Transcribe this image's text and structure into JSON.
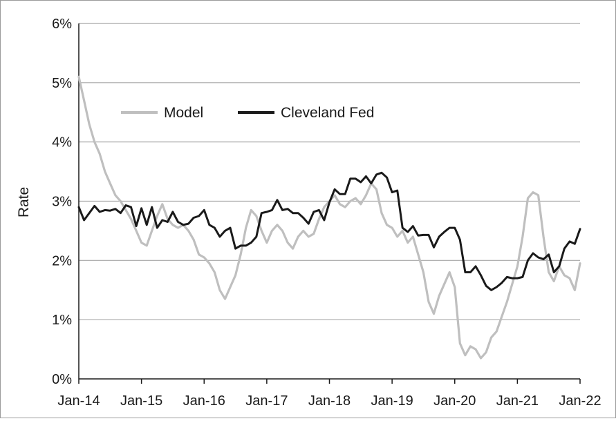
{
  "chart_data": {
    "type": "line",
    "title": "",
    "xlabel": "",
    "ylabel": "Rate",
    "ylim": [
      0,
      6
    ],
    "y_ticks": [
      "0%",
      "1%",
      "2%",
      "3%",
      "4%",
      "5%",
      "6%"
    ],
    "x_ticks": [
      "Jan-14",
      "Jan-15",
      "Jan-16",
      "Jan-17",
      "Jan-18",
      "Jan-19",
      "Jan-20",
      "Jan-21",
      "Jan-22"
    ],
    "x_range": [
      "2014-01",
      "2022-01"
    ],
    "grid": "horizontal",
    "legend_position": "top-left",
    "series": [
      {
        "name": "Model",
        "color": "#bfbfbf",
        "x": [
          "2014-01",
          "2014-02",
          "2014-03",
          "2014-04",
          "2014-05",
          "2014-06",
          "2014-07",
          "2014-08",
          "2014-09",
          "2014-10",
          "2014-11",
          "2014-12",
          "2015-01",
          "2015-02",
          "2015-03",
          "2015-04",
          "2015-05",
          "2015-06",
          "2015-07",
          "2015-08",
          "2015-09",
          "2015-10",
          "2015-11",
          "2015-12",
          "2016-01",
          "2016-02",
          "2016-03",
          "2016-04",
          "2016-05",
          "2016-06",
          "2016-07",
          "2016-08",
          "2016-09",
          "2016-10",
          "2016-11",
          "2016-12",
          "2017-01",
          "2017-02",
          "2017-03",
          "2017-04",
          "2017-05",
          "2017-06",
          "2017-07",
          "2017-08",
          "2017-09",
          "2017-10",
          "2017-11",
          "2017-12",
          "2018-01",
          "2018-02",
          "2018-03",
          "2018-04",
          "2018-05",
          "2018-06",
          "2018-07",
          "2018-08",
          "2018-09",
          "2018-10",
          "2018-11",
          "2018-12",
          "2019-01",
          "2019-02",
          "2019-03",
          "2019-04",
          "2019-05",
          "2019-06",
          "2019-07",
          "2019-08",
          "2019-09",
          "2019-10",
          "2019-11",
          "2019-12",
          "2020-01",
          "2020-02",
          "2020-03",
          "2020-04",
          "2020-05",
          "2020-06",
          "2020-07",
          "2020-08",
          "2020-09",
          "2020-10",
          "2020-11",
          "2020-12",
          "2021-01",
          "2021-02",
          "2021-03",
          "2021-04",
          "2021-05",
          "2021-06",
          "2021-07",
          "2021-08",
          "2021-09",
          "2021-10",
          "2021-11",
          "2021-12",
          "2022-01"
        ],
        "values": [
          5.1,
          4.7,
          4.3,
          4.0,
          3.8,
          3.5,
          3.3,
          3.1,
          3.0,
          2.85,
          2.7,
          2.5,
          2.3,
          2.25,
          2.5,
          2.75,
          2.95,
          2.7,
          2.6,
          2.55,
          2.6,
          2.5,
          2.35,
          2.1,
          2.05,
          1.95,
          1.8,
          1.5,
          1.35,
          1.55,
          1.75,
          2.1,
          2.55,
          2.85,
          2.75,
          2.5,
          2.3,
          2.5,
          2.6,
          2.5,
          2.3,
          2.2,
          2.4,
          2.5,
          2.4,
          2.45,
          2.7,
          2.9,
          3.0,
          3.1,
          2.95,
          2.9,
          3.0,
          3.05,
          2.95,
          3.1,
          3.3,
          3.2,
          2.8,
          2.6,
          2.55,
          2.4,
          2.5,
          2.3,
          2.4,
          2.1,
          1.8,
          1.3,
          1.1,
          1.4,
          1.6,
          1.8,
          1.55,
          0.6,
          0.4,
          0.55,
          0.5,
          0.35,
          0.45,
          0.7,
          0.8,
          1.05,
          1.3,
          1.6,
          1.9,
          2.4,
          3.05,
          3.15,
          3.1,
          2.4,
          1.8,
          1.65,
          1.9,
          1.75,
          1.7,
          1.5,
          1.95
        ]
      },
      {
        "name": "Cleveland Fed",
        "color": "#1a1a1a",
        "x": [
          "2014-01",
          "2014-02",
          "2014-03",
          "2014-04",
          "2014-05",
          "2014-06",
          "2014-07",
          "2014-08",
          "2014-09",
          "2014-10",
          "2014-11",
          "2014-12",
          "2015-01",
          "2015-02",
          "2015-03",
          "2015-04",
          "2015-05",
          "2015-06",
          "2015-07",
          "2015-08",
          "2015-09",
          "2015-10",
          "2015-11",
          "2015-12",
          "2016-01",
          "2016-02",
          "2016-03",
          "2016-04",
          "2016-05",
          "2016-06",
          "2016-07",
          "2016-08",
          "2016-09",
          "2016-10",
          "2016-11",
          "2016-12",
          "2017-01",
          "2017-02",
          "2017-03",
          "2017-04",
          "2017-05",
          "2017-06",
          "2017-07",
          "2017-08",
          "2017-09",
          "2017-10",
          "2017-11",
          "2017-12",
          "2018-01",
          "2018-02",
          "2018-03",
          "2018-04",
          "2018-05",
          "2018-06",
          "2018-07",
          "2018-08",
          "2018-09",
          "2018-10",
          "2018-11",
          "2018-12",
          "2019-01",
          "2019-02",
          "2019-03",
          "2019-04",
          "2019-05",
          "2019-06",
          "2019-07",
          "2019-08",
          "2019-09",
          "2019-10",
          "2019-11",
          "2019-12",
          "2020-01",
          "2020-02",
          "2020-03",
          "2020-04",
          "2020-05",
          "2020-06",
          "2020-07",
          "2020-08",
          "2020-09",
          "2020-10",
          "2020-11",
          "2020-12",
          "2021-01",
          "2021-02",
          "2021-03",
          "2021-04",
          "2021-05",
          "2021-06",
          "2021-07",
          "2021-08",
          "2021-09",
          "2021-10",
          "2021-11",
          "2021-12",
          "2022-01"
        ],
        "values": [
          2.9,
          2.68,
          2.8,
          2.92,
          2.82,
          2.85,
          2.84,
          2.87,
          2.8,
          2.93,
          2.9,
          2.58,
          2.88,
          2.6,
          2.9,
          2.55,
          2.68,
          2.65,
          2.82,
          2.65,
          2.6,
          2.62,
          2.72,
          2.75,
          2.85,
          2.6,
          2.55,
          2.4,
          2.5,
          2.55,
          2.2,
          2.25,
          2.25,
          2.3,
          2.4,
          2.8,
          2.82,
          2.85,
          3.02,
          2.85,
          2.87,
          2.8,
          2.8,
          2.72,
          2.62,
          2.82,
          2.85,
          2.68,
          2.98,
          3.2,
          3.12,
          3.12,
          3.38,
          3.38,
          3.32,
          3.42,
          3.3,
          3.45,
          3.48,
          3.4,
          3.15,
          3.18,
          2.55,
          2.48,
          2.58,
          2.42,
          2.43,
          2.43,
          2.22,
          2.4,
          2.48,
          2.55,
          2.55,
          2.35,
          1.8,
          1.8,
          1.9,
          1.75,
          1.57,
          1.5,
          1.55,
          1.62,
          1.72,
          1.7,
          1.7,
          1.72,
          2.0,
          2.12,
          2.05,
          2.02,
          2.1,
          1.8,
          1.9,
          2.2,
          2.32,
          2.28,
          2.53
        ]
      }
    ]
  }
}
